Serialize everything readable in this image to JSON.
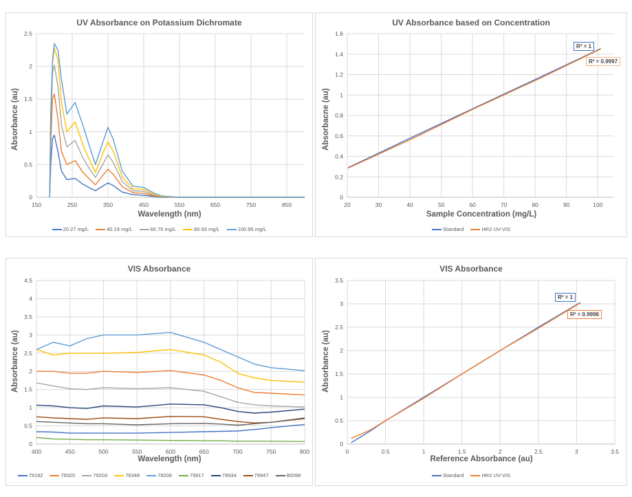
{
  "chart_data": [
    {
      "type": "line",
      "title": "UV Absorbance on Potassium Dichromate",
      "xlabel": "Wavelength (nm)",
      "ylabel": "Absorbance (au)",
      "xlim": [
        150,
        900
      ],
      "ylim": [
        0,
        2.5
      ],
      "xticks": [
        "150",
        "250",
        "350",
        "450",
        "550",
        "650",
        "750",
        "850"
      ],
      "yticks": [
        "0",
        "0.5",
        "1",
        "1.5",
        "2",
        "2.5"
      ],
      "grid": true,
      "legend": "bottom",
      "x": [
        187,
        190,
        195,
        200,
        210,
        220,
        235,
        258,
        280,
        300,
        315,
        335,
        350,
        365,
        390,
        420,
        450,
        480,
        500,
        550,
        900
      ],
      "series": [
        {
          "name": "20.27 mg/L",
          "color": "#4472C4",
          "values": [
            0,
            0.5,
            0.9,
            0.95,
            0.7,
            0.4,
            0.27,
            0.29,
            0.2,
            0.14,
            0.1,
            0.17,
            0.22,
            0.18,
            0.08,
            0.04,
            0.03,
            0.01,
            0,
            0,
            0
          ]
        },
        {
          "name": "40.19 mg/L",
          "color": "#ED7D31",
          "values": [
            0,
            0.8,
            1.5,
            1.58,
            1.2,
            0.7,
            0.5,
            0.56,
            0.38,
            0.27,
            0.19,
            0.33,
            0.43,
            0.35,
            0.16,
            0.07,
            0.06,
            0.02,
            0.01,
            0,
            0
          ]
        },
        {
          "name": "60.70 mg/L",
          "color": "#A5A5A5",
          "values": [
            0,
            1.0,
            1.9,
            2.02,
            1.7,
            1.1,
            0.77,
            0.87,
            0.6,
            0.42,
            0.3,
            0.5,
            0.65,
            0.53,
            0.24,
            0.1,
            0.09,
            0.03,
            0.01,
            0,
            0
          ]
        },
        {
          "name": "80.93 mg/L",
          "color": "#FFC000",
          "values": [
            0,
            1.2,
            2.05,
            2.28,
            2.1,
            1.45,
            1.0,
            1.15,
            0.8,
            0.55,
            0.38,
            0.66,
            0.85,
            0.7,
            0.31,
            0.13,
            0.12,
            0.04,
            0.01,
            0,
            0
          ]
        },
        {
          "name": "100.95 mg/L",
          "color": "#5B9BD5",
          "values": [
            0,
            1.3,
            2.1,
            2.35,
            2.25,
            1.8,
            1.27,
            1.45,
            1.1,
            0.75,
            0.5,
            0.83,
            1.07,
            0.88,
            0.4,
            0.17,
            0.15,
            0.06,
            0.02,
            0,
            0
          ]
        }
      ]
    },
    {
      "type": "line",
      "title": "UV Absorbance based on Concentration",
      "xlabel": "Sample Concentration (mg/L)",
      "ylabel": "Absorbacne (au)",
      "xlim": [
        20,
        105
      ],
      "ylim": [
        0,
        1.6
      ],
      "xticks": [
        "20",
        "30",
        "40",
        "50",
        "60",
        "70",
        "80",
        "90",
        "100"
      ],
      "yticks": [
        "0",
        "0.2",
        "0.4",
        "0.6",
        "0.8",
        "1",
        "1.2",
        "1.4",
        "1.6"
      ],
      "grid": true,
      "legend": "bottom",
      "x": [
        20.27,
        40.19,
        60.7,
        80.93,
        100.95
      ],
      "series": [
        {
          "name": "Standard",
          "color": "#4472C4",
          "values": [
            0.29,
            0.58,
            0.875,
            1.165,
            1.455
          ],
          "r2": "R² = 1"
        },
        {
          "name": "HR2 UV-VIS",
          "color": "#ED7D31",
          "values": [
            0.285,
            0.565,
            0.87,
            1.155,
            1.45
          ],
          "r2": "R² = 0.9997"
        }
      ]
    },
    {
      "type": "line",
      "title": "VIS Absorbance",
      "xlabel": "Wavelength (nm)",
      "ylabel": "Absorbance (au)",
      "xlim": [
        400,
        800
      ],
      "ylim": [
        0,
        4.5
      ],
      "xticks": [
        "400",
        "450",
        "500",
        "550",
        "600",
        "650",
        "700",
        "750",
        "800"
      ],
      "yticks": [
        "0",
        "0.5",
        "1",
        "1.5",
        "2",
        "2.5",
        "3",
        "3.5",
        "4",
        "4.5"
      ],
      "grid": true,
      "legend": "bottom",
      "x": [
        400,
        425,
        450,
        475,
        500,
        550,
        600,
        650,
        675,
        700,
        725,
        750,
        800
      ],
      "series": [
        {
          "name": "79192",
          "color": "#4472C4",
          "values": [
            0.34,
            0.33,
            0.3,
            0.3,
            0.3,
            0.3,
            0.32,
            0.34,
            0.35,
            0.36,
            0.4,
            0.45,
            0.54
          ]
        },
        {
          "name": "79320",
          "color": "#ED7D31",
          "values": [
            2.0,
            2.0,
            1.95,
            1.95,
            2.0,
            1.97,
            2.02,
            1.9,
            1.75,
            1.55,
            1.42,
            1.4,
            1.35
          ]
        },
        {
          "name": "79203",
          "color": "#A5A5A5",
          "values": [
            1.68,
            1.6,
            1.52,
            1.5,
            1.55,
            1.52,
            1.55,
            1.45,
            1.3,
            1.15,
            1.08,
            1.05,
            1.02
          ]
        },
        {
          "name": "76348",
          "color": "#FFC000",
          "values": [
            2.6,
            2.45,
            2.5,
            2.5,
            2.5,
            2.52,
            2.6,
            2.45,
            2.25,
            1.95,
            1.82,
            1.75,
            1.7
          ]
        },
        {
          "name": "79208",
          "color": "#5B9BD5",
          "values": [
            2.6,
            2.8,
            2.7,
            2.9,
            3.0,
            3.0,
            3.07,
            2.8,
            2.6,
            2.4,
            2.2,
            2.1,
            2.02
          ]
        },
        {
          "name": "79917",
          "color": "#70AD47",
          "values": [
            0.18,
            0.14,
            0.13,
            0.12,
            0.12,
            0.11,
            0.1,
            0.09,
            0.09,
            0.08,
            0.08,
            0.08,
            0.07
          ]
        },
        {
          "name": "79934",
          "color": "#264478",
          "values": [
            1.07,
            1.05,
            1.0,
            0.98,
            1.05,
            1.02,
            1.1,
            1.08,
            1.0,
            0.9,
            0.85,
            0.88,
            0.96
          ]
        },
        {
          "name": "79947",
          "color": "#9E480E",
          "values": [
            0.75,
            0.72,
            0.7,
            0.68,
            0.72,
            0.7,
            0.76,
            0.75,
            0.68,
            0.62,
            0.58,
            0.6,
            0.7
          ]
        },
        {
          "name": "80098",
          "color": "#636363",
          "values": [
            0.62,
            0.6,
            0.58,
            0.56,
            0.56,
            0.53,
            0.56,
            0.57,
            0.55,
            0.52,
            0.56,
            0.6,
            0.72
          ]
        }
      ]
    },
    {
      "type": "line",
      "title": "VIS Absorbance",
      "xlabel": "Reference Absorbance (au)",
      "ylabel": "Absorbance (au)",
      "xlim": [
        0,
        3.5
      ],
      "ylim": [
        0,
        3.5
      ],
      "xticks": [
        "0",
        "0.5",
        "1",
        "1.5",
        "2",
        "2.5",
        "3",
        "3.5"
      ],
      "yticks": [
        "0",
        "0.5",
        "1",
        "1.5",
        "2",
        "2.5",
        "3",
        "3.5"
      ],
      "grid": true,
      "legend": "bottom",
      "x": [
        0.05,
        0.3,
        0.5,
        1.0,
        1.5,
        2.0,
        2.5,
        3.05
      ],
      "series": [
        {
          "name": "Standard",
          "color": "#4472C4",
          "values": [
            0.03,
            0.28,
            0.5,
            1.0,
            1.5,
            2.0,
            2.5,
            3.03
          ],
          "r2": "R² = 1"
        },
        {
          "name": "HR2 UV-VIS",
          "color": "#ED7D31",
          "values": [
            0.12,
            0.3,
            0.5,
            0.98,
            1.5,
            2.0,
            2.48,
            3.02
          ],
          "r2": "R² = 0.9996"
        }
      ]
    }
  ]
}
